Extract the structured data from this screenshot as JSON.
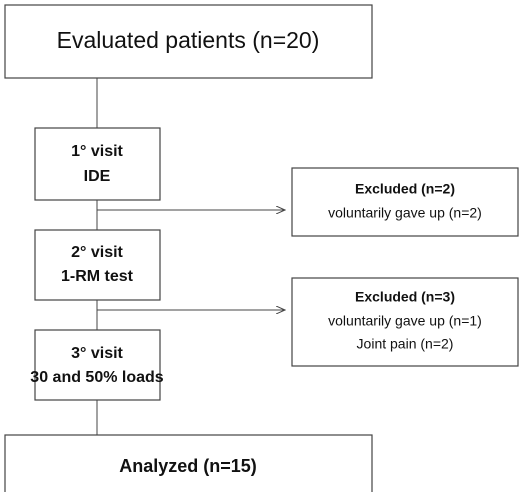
{
  "nodes": [
    {
      "label": "Evaluated patients (n=20)"
    },
    {
      "lines": [
        "1° visit",
        "IDE"
      ]
    },
    {
      "lines": [
        "2° visit",
        "1-RM test"
      ]
    },
    {
      "lines": [
        "3° visit",
        "30 and 50% loads"
      ]
    },
    {
      "label": "Analyzed (n=15)"
    }
  ],
  "exclusions": [
    {
      "title": "Excluded (n=2)",
      "lines": [
        "voluntarily gave up (n=2)"
      ]
    },
    {
      "title": "Excluded (n=3)",
      "lines": [
        "voluntarily gave up  (n=1)",
        "Joint pain (n=2)"
      ]
    }
  ]
}
